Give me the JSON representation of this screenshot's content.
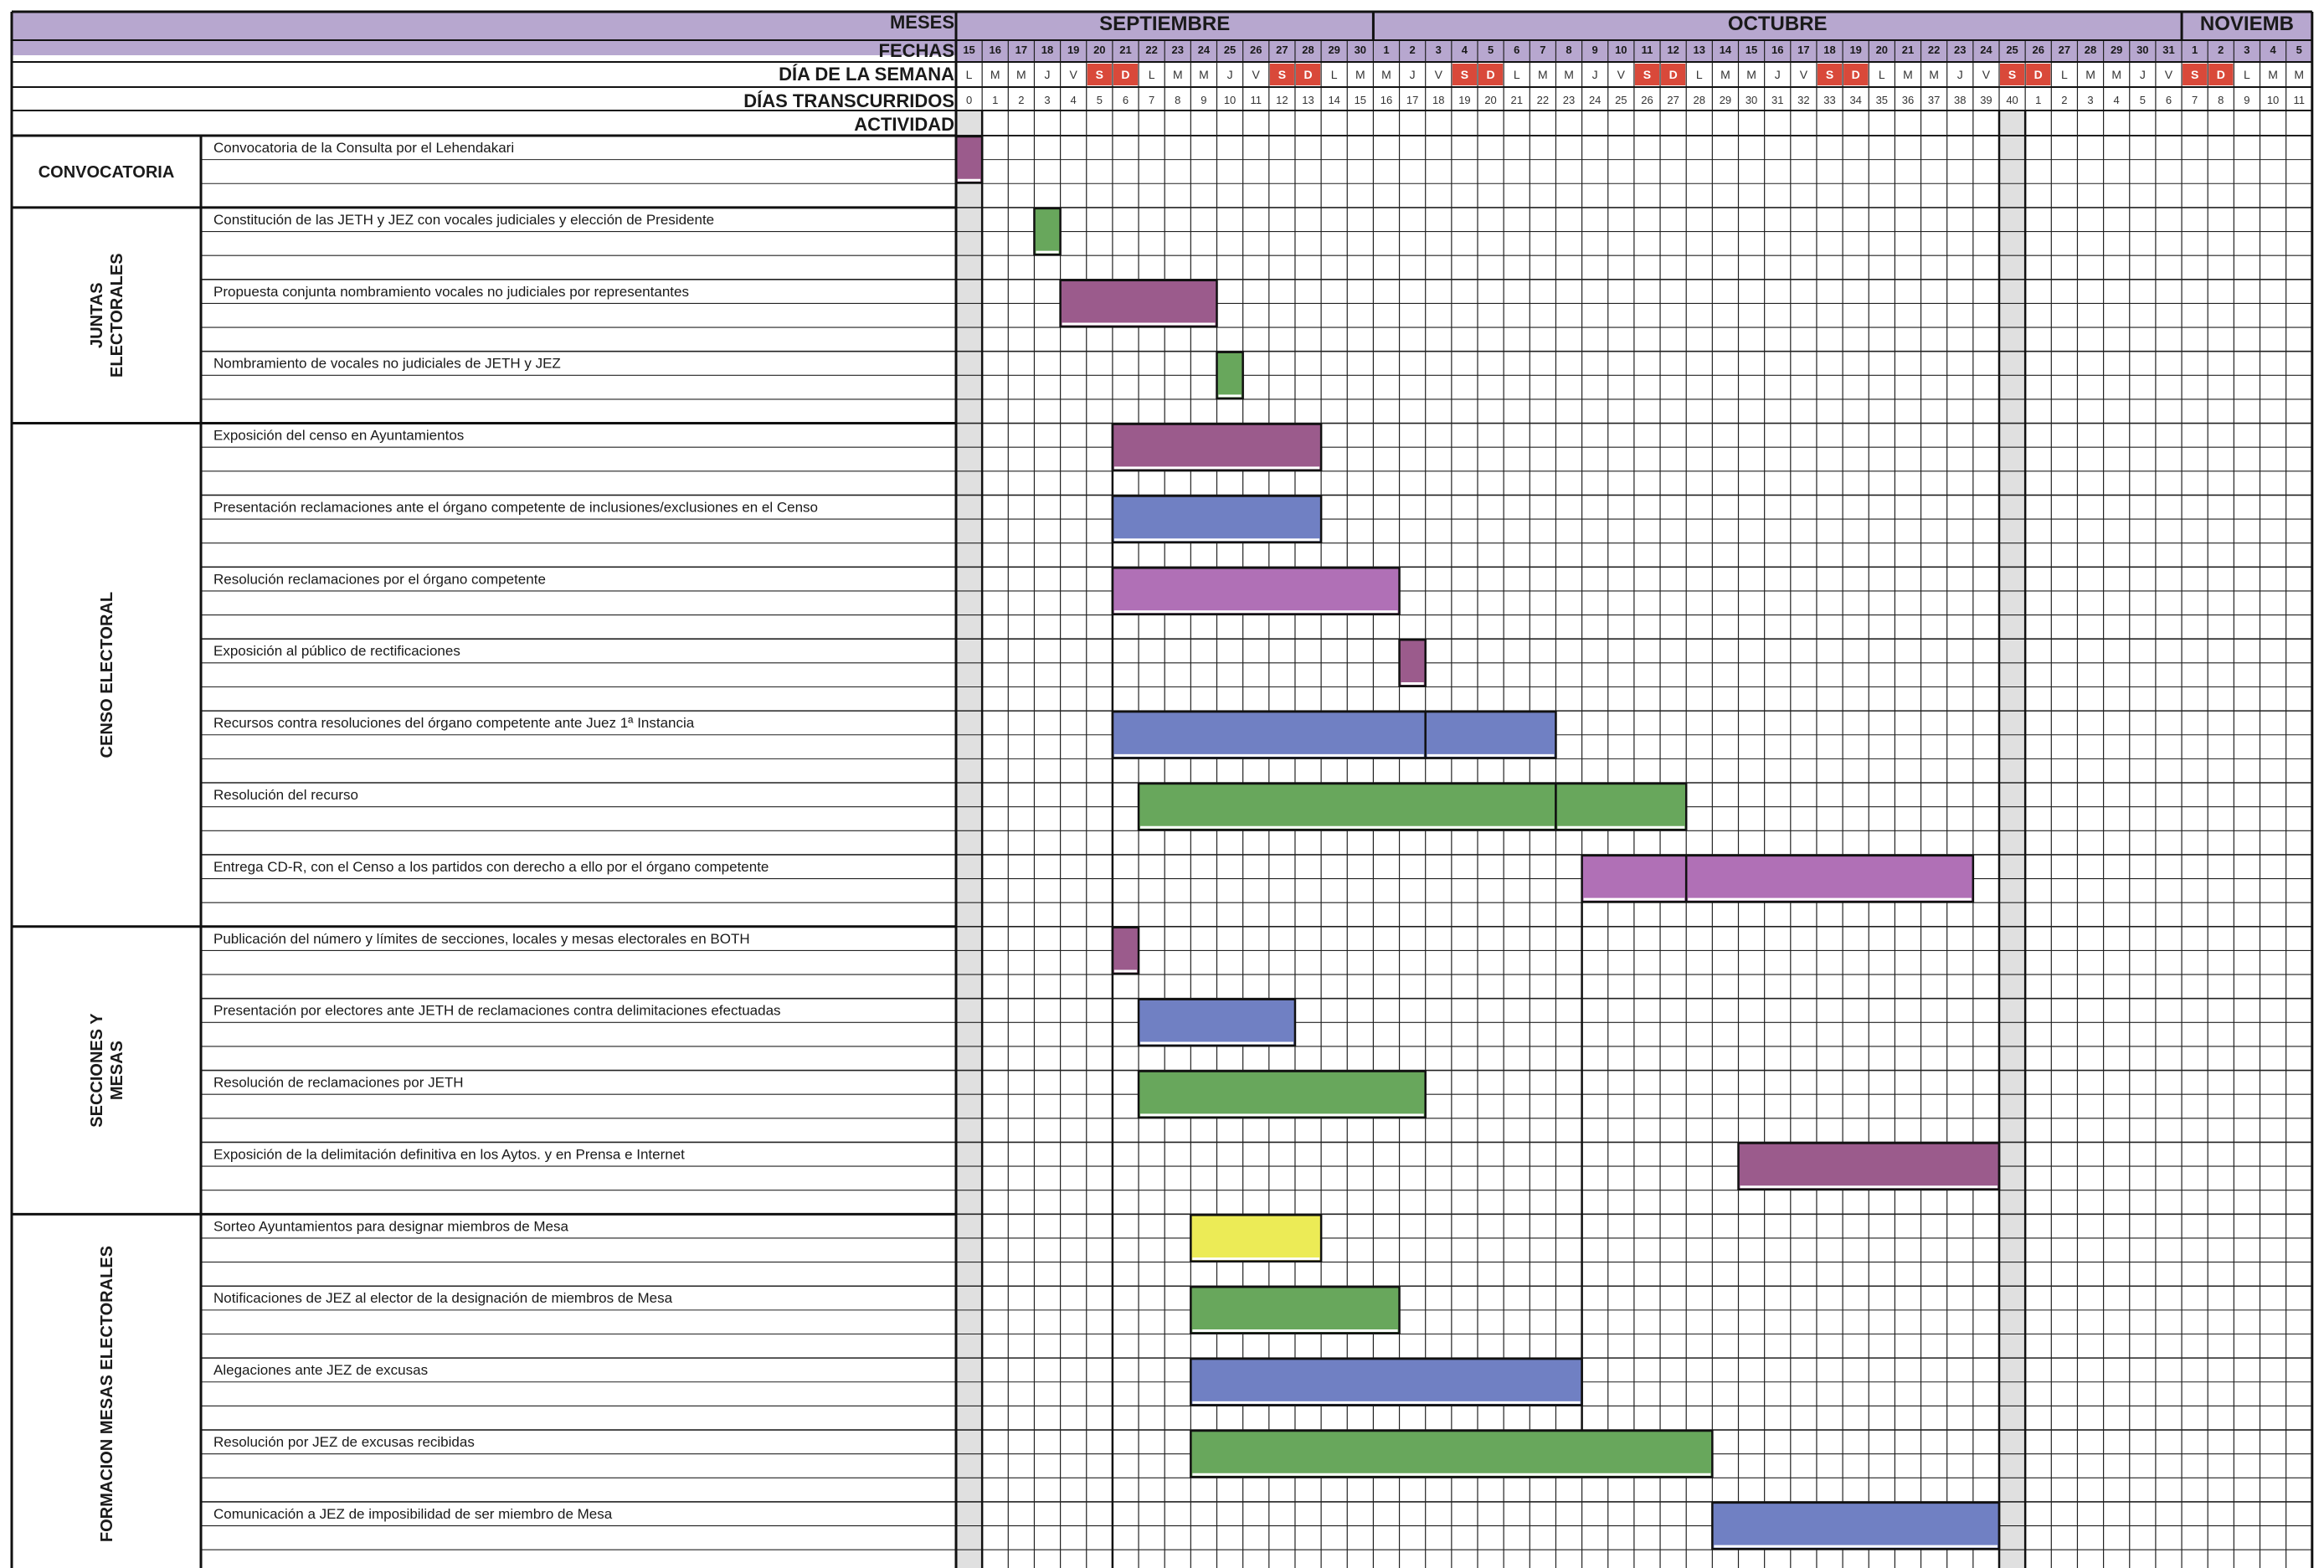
{
  "header": {
    "meses_label": "MESES",
    "fechas_label": "FECHAS",
    "dia_semana_label": "DÍA DE LA SEMANA",
    "dias_transcurridos_label": "DÍAS TRANSCURRIDOS",
    "actividad_label": "ACTIVIDAD"
  },
  "months": [
    {
      "name": "SEPTIEMBRE",
      "days": 16
    },
    {
      "name": "OCTUBRE",
      "days": 31
    },
    {
      "name": "NOVIEMB",
      "days": 5
    }
  ],
  "dates": [
    "15",
    "16",
    "17",
    "18",
    "19",
    "20",
    "21",
    "22",
    "23",
    "24",
    "25",
    "26",
    "27",
    "28",
    "29",
    "30",
    "1",
    "2",
    "3",
    "4",
    "5",
    "6",
    "7",
    "8",
    "9",
    "10",
    "11",
    "12",
    "13",
    "14",
    "15",
    "16",
    "17",
    "18",
    "19",
    "20",
    "21",
    "22",
    "23",
    "24",
    "25",
    "26",
    "27",
    "28",
    "29",
    "30",
    "31",
    "1",
    "2",
    "3",
    "4",
    "5"
  ],
  "weekdays": [
    "L",
    "M",
    "M",
    "J",
    "V",
    "S",
    "D",
    "L",
    "M",
    "M",
    "J",
    "V",
    "S",
    "D",
    "L",
    "M",
    "M",
    "J",
    "V",
    "S",
    "D",
    "L",
    "M",
    "M",
    "J",
    "V",
    "S",
    "D",
    "L",
    "M",
    "M",
    "J",
    "V",
    "S",
    "D",
    "L",
    "M",
    "M",
    "J",
    "V",
    "S",
    "D",
    "L",
    "M",
    "M",
    "J",
    "V",
    "S",
    "D",
    "L",
    "M",
    "M"
  ],
  "elapsed_days": [
    "0",
    "1",
    "2",
    "3",
    "4",
    "5",
    "6",
    "7",
    "8",
    "9",
    "10",
    "11",
    "12",
    "13",
    "14",
    "15",
    "16",
    "17",
    "18",
    "19",
    "20",
    "21",
    "22",
    "23",
    "24",
    "25",
    "26",
    "27",
    "28",
    "29",
    "30",
    "31",
    "32",
    "33",
    "34",
    "35",
    "36",
    "37",
    "38",
    "39",
    "40",
    "1",
    "2",
    "3",
    "4",
    "5",
    "6",
    "7",
    "8",
    "9",
    "10",
    "11"
  ],
  "sections": [
    {
      "name": "CONVOCATORIA",
      "lines": [
        "CONVOCATORIA"
      ],
      "activities": 1
    },
    {
      "name": "JUNTAS ELECTORALES",
      "lines": [
        "JUNTAS",
        "ELECTORALES"
      ],
      "activities": 3
    },
    {
      "name": "CENSO ELECTORAL",
      "lines": [
        "CENSO ELECTORAL"
      ],
      "activities": 7
    },
    {
      "name": "SECCIONES Y MESAS",
      "lines": [
        "SECCIONES  Y",
        "MESAS"
      ],
      "activities": 4
    },
    {
      "name": "FORMACION MESAS ELECTORALES",
      "lines": [
        "FORMACION  MESAS ELECTORALES"
      ],
      "activities": 5
    }
  ],
  "colors": {
    "header_purple": "#b7a7cf",
    "weekend_red": "#d9493a",
    "gray_column": "#e0e0e0",
    "bar_plum": "#9b5b8c",
    "bar_green": "#68a75c",
    "bar_blue": "#7080c3",
    "bar_orchid": "#b070b6",
    "bar_yellow": "#eceb56"
  },
  "chart_data": {
    "type": "gantt",
    "x_unit": "días transcurridos",
    "bars_note": "start/end are column indices on the date axis",
    "activities": [
      {
        "label": "Convocatoria de la Consulta por el Lehendakari",
        "segments": [
          {
            "start": 0,
            "end": 0,
            "color": "bar_plum"
          }
        ]
      },
      {
        "label": "Constitución de las JETH y JEZ con vocales judiciales y elección de Presidente",
        "segments": [
          {
            "start": 3,
            "end": 3,
            "color": "bar_green"
          }
        ]
      },
      {
        "label": "Propuesta conjunta nombramiento vocales no judiciales por representantes",
        "segments": [
          {
            "start": 4,
            "end": 9,
            "color": "bar_plum"
          }
        ]
      },
      {
        "label": "Nombramiento de vocales no judiciales de JETH y JEZ",
        "segments": [
          {
            "start": 10,
            "end": 10,
            "color": "bar_green"
          }
        ]
      },
      {
        "label": "Exposición del censo en Ayuntamientos",
        "segments": [
          {
            "start": 6,
            "end": 13,
            "color": "bar_plum"
          }
        ]
      },
      {
        "label": "Presentación reclamaciones ante el órgano competente de inclusiones/exclusiones en el Censo",
        "segments": [
          {
            "start": 6,
            "end": 13,
            "color": "bar_blue"
          }
        ]
      },
      {
        "label": "Resolución reclamaciones por el órgano competente",
        "segments": [
          {
            "start": 6,
            "end": 16,
            "color": "bar_orchid"
          }
        ]
      },
      {
        "label": "Exposición al público de rectificaciones",
        "segments": [
          {
            "start": 17,
            "end": 17,
            "color": "bar_plum"
          }
        ]
      },
      {
        "label": "Recursos contra resoluciones del órgano competente ante Juez 1ª Instancia",
        "segments": [
          {
            "start": 6,
            "end": 17,
            "color": "bar_blue"
          },
          {
            "start": 18,
            "end": 22,
            "color": "bar_blue"
          }
        ]
      },
      {
        "label": "Resolución del recurso",
        "segments": [
          {
            "start": 7,
            "end": 22,
            "color": "bar_green"
          },
          {
            "start": 23,
            "end": 27,
            "color": "bar_green"
          }
        ]
      },
      {
        "label": "Entrega CD-R, con el Censo a los partidos con derecho a ello por el órgano competente",
        "segments": [
          {
            "start": 24,
            "end": 27,
            "color": "bar_orchid"
          },
          {
            "start": 28,
            "end": 38,
            "color": "bar_orchid"
          }
        ]
      },
      {
        "label": "Publicación del número y límites de secciones, locales y mesas electorales en BOTH",
        "segments": [
          {
            "start": 6,
            "end": 6,
            "color": "bar_plum"
          }
        ]
      },
      {
        "label": "Presentación por electores ante JETH de reclamaciones contra delimitaciones efectuadas",
        "segments": [
          {
            "start": 7,
            "end": 12,
            "color": "bar_blue"
          }
        ]
      },
      {
        "label": "Resolución de reclamaciones por JETH",
        "segments": [
          {
            "start": 7,
            "end": 17,
            "color": "bar_green"
          }
        ]
      },
      {
        "label": "Exposición de la delimitación definitiva en los Aytos. y en Prensa e Internet",
        "segments": [
          {
            "start": 30,
            "end": 39,
            "color": "bar_plum"
          }
        ]
      },
      {
        "label": "Sorteo   Ayuntamientos para designar miembros de Mesa",
        "segments": [
          {
            "start": 9,
            "end": 13,
            "color": "bar_yellow"
          }
        ]
      },
      {
        "label": "Notificaciones de JEZ al elector de la designación de miembros de Mesa",
        "segments": [
          {
            "start": 9,
            "end": 16,
            "color": "bar_green"
          }
        ]
      },
      {
        "label": "Alegaciones ante JEZ de excusas",
        "segments": [
          {
            "start": 9,
            "end": 23,
            "color": "bar_blue"
          }
        ]
      },
      {
        "label": "Resolución por JEZ de excusas recibidas",
        "segments": [
          {
            "start": 9,
            "end": 28,
            "color": "bar_green"
          }
        ]
      },
      {
        "label": "Comunicación a JEZ de imposibilidad de ser miembro de Mesa",
        "segments": [
          {
            "start": 29,
            "end": 39,
            "color": "bar_blue"
          }
        ]
      }
    ]
  }
}
